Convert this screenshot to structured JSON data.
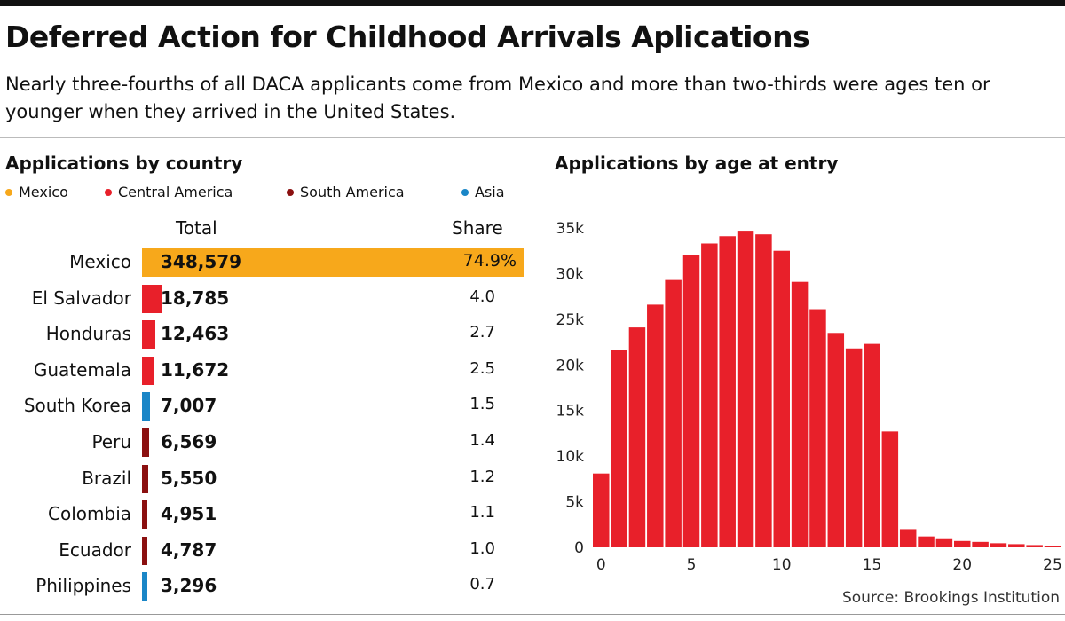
{
  "title": "Deferred Action for Childhood Arrivals Aplications",
  "subtitle": "Nearly three-fourths of all DACA applicants come from Mexico and more than two-thirds were ages ten or younger when they arrived in the United States.",
  "source": "Source: Brookings Institution",
  "colors": {
    "mexico": "#f7a81b",
    "central_america": "#e8202a",
    "south_america": "#8b1010",
    "asia": "#1a86c7",
    "histogram": "#e8202a"
  },
  "chart_data": [
    {
      "type": "bar",
      "title": "Applications by country",
      "legend": [
        {
          "name": "Mexico",
          "color": "#f7a81b"
        },
        {
          "name": "Central America",
          "color": "#e8202a"
        },
        {
          "name": "South America",
          "color": "#8b1010"
        },
        {
          "name": "Asia",
          "color": "#1a86c7"
        }
      ],
      "legend_position": "top-left",
      "columns": [
        "Total",
        "Share"
      ],
      "categories": [
        "Mexico",
        "El Salvador",
        "Honduras",
        "Guatemala",
        "South Korea",
        "Peru",
        "Brazil",
        "Colombia",
        "Ecuador",
        "Philippines"
      ],
      "values": [
        348579,
        18785,
        12463,
        11672,
        7007,
        6569,
        5550,
        4951,
        4787,
        3296
      ],
      "value_labels": [
        "348,579",
        "18,785",
        "12,463",
        "11,672",
        "7,007",
        "6,569",
        "5,550",
        "4,951",
        "4,787",
        "3,296"
      ],
      "share_labels": [
        "74.9%",
        "4.0",
        "2.7",
        "2.5",
        "1.5",
        "1.4",
        "1.2",
        "1.1",
        "1.0",
        "0.7"
      ],
      "regions": [
        "Mexico",
        "Central America",
        "Central America",
        "Central America",
        "Asia",
        "South America",
        "South America",
        "South America",
        "South America",
        "Asia"
      ]
    },
    {
      "type": "bar",
      "title": "Applications by age at entry",
      "x": [
        0,
        1,
        2,
        3,
        4,
        5,
        6,
        7,
        8,
        9,
        10,
        11,
        12,
        13,
        14,
        15,
        16,
        17,
        18,
        19,
        20,
        21,
        22,
        23,
        24,
        25
      ],
      "values": [
        8100,
        21600,
        24100,
        26600,
        29300,
        32000,
        33300,
        34100,
        34700,
        34300,
        32500,
        29100,
        26100,
        23500,
        21800,
        22300,
        12700,
        2000,
        1200,
        900,
        700,
        600,
        450,
        350,
        250,
        150
      ],
      "xticks": [
        0,
        5,
        10,
        15,
        20,
        25
      ],
      "yticks": [
        0,
        5000,
        10000,
        15000,
        20000,
        25000,
        30000,
        35000
      ],
      "ytick_labels": [
        "0",
        "5k",
        "10k",
        "15k",
        "20k",
        "25k",
        "30k",
        "35k"
      ],
      "ylim": [
        0,
        35000
      ],
      "grid": false
    }
  ]
}
